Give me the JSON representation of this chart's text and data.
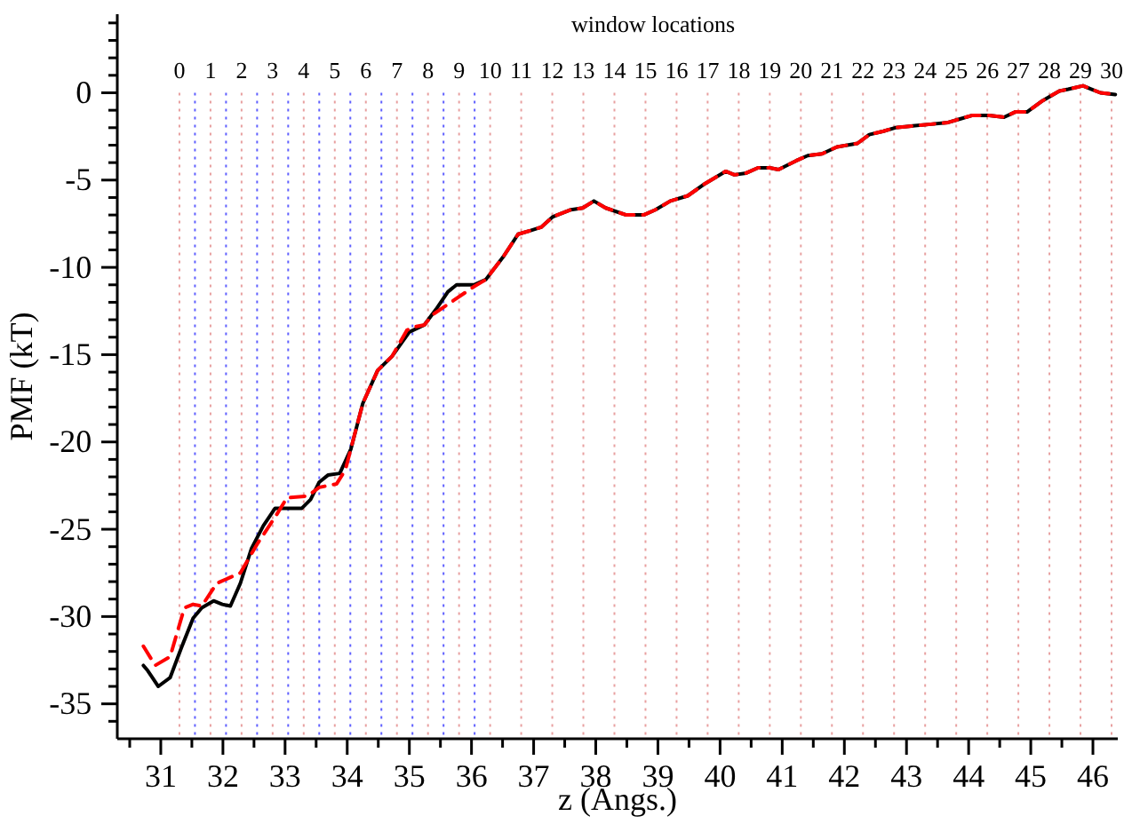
{
  "chart_data": {
    "type": "line",
    "xlabel": "z (Angs.)",
    "ylabel": "PMF (kT)",
    "x2label": "window locations",
    "x2lim": [
      -2,
      30.2
    ],
    "x2ticks": [
      0,
      1,
      2,
      3,
      4,
      5,
      6,
      7,
      8,
      9,
      10,
      11,
      12,
      13,
      14,
      15,
      16,
      17,
      18,
      19,
      20,
      21,
      22,
      23,
      24,
      25,
      26,
      27,
      28,
      29,
      30
    ],
    "xlim": [
      30.3,
      46.4
    ],
    "ylim": [
      -37,
      4.5
    ],
    "xticks": [
      {
        "value": 30.5,
        "label": null
      },
      31,
      {
        "value": 31.5,
        "label": null
      },
      32,
      {
        "value": 32.5,
        "label": null
      },
      33,
      {
        "value": 33.5,
        "label": null
      },
      34,
      {
        "value": 34.5,
        "label": null
      },
      35,
      {
        "value": 35.5,
        "label": null
      },
      36,
      {
        "value": 36.5,
        "label": null
      },
      37,
      {
        "value": 37.5,
        "label": null
      },
      38,
      {
        "value": 38.5,
        "label": null
      },
      39,
      {
        "value": 39.5,
        "label": null
      },
      40,
      {
        "value": 40.5,
        "label": null
      },
      41,
      {
        "value": 41.5,
        "label": null
      },
      42,
      {
        "value": 42.5,
        "label": null
      },
      43,
      {
        "value": 43.5,
        "label": null
      },
      44,
      {
        "value": 44.5,
        "label": null
      },
      45,
      {
        "value": 45.5,
        "label": null
      },
      46
    ],
    "yticks": [
      {
        "value": -36,
        "label": null
      },
      -35,
      {
        "value": -34,
        "label": null
      },
      {
        "value": -33,
        "label": null
      },
      {
        "value": -32,
        "label": null
      },
      {
        "value": -31,
        "label": null
      },
      -30,
      {
        "value": -29,
        "label": null
      },
      {
        "value": -28,
        "label": null
      },
      {
        "value": -27,
        "label": null
      },
      {
        "value": -26,
        "label": null
      },
      -25,
      {
        "value": -24,
        "label": null
      },
      {
        "value": -23,
        "label": null
      },
      {
        "value": -22,
        "label": null
      },
      {
        "value": -21,
        "label": null
      },
      -20,
      {
        "value": -19,
        "label": null
      },
      {
        "value": -18,
        "label": null
      },
      {
        "value": -17,
        "label": null
      },
      {
        "value": -16,
        "label": null
      },
      -15,
      {
        "value": -14,
        "label": null
      },
      {
        "value": -13,
        "label": null
      },
      {
        "value": -12,
        "label": null
      },
      {
        "value": -11,
        "label": null
      },
      -10,
      {
        "value": -9,
        "label": null
      },
      {
        "value": -8,
        "label": null
      },
      {
        "value": -7,
        "label": null
      },
      {
        "value": -6,
        "label": null
      },
      -5,
      {
        "value": -4,
        "label": null
      },
      {
        "value": -3,
        "label": null
      },
      {
        "value": -2,
        "label": null
      },
      {
        "value": -1,
        "label": null
      },
      0,
      {
        "value": 1,
        "label": null
      },
      {
        "value": 2,
        "label": null
      },
      {
        "value": 3,
        "label": null
      },
      {
        "value": 4,
        "label": null
      }
    ],
    "series": [
      {
        "color": "#000000",
        "line_style": "solid",
        "x": [
          30.72,
          30.79,
          30.96,
          31.15,
          31.33,
          31.52,
          31.66,
          31.85,
          31.99,
          32.12,
          32.28,
          32.46,
          32.65,
          32.84,
          33.03,
          33.27,
          33.41,
          33.55,
          33.69,
          33.88,
          34.06,
          34.25,
          34.49,
          34.72,
          35.0,
          35.24,
          35.43,
          35.62,
          35.76,
          36.04,
          36.23,
          36.51,
          36.75,
          36.94,
          37.12,
          37.31,
          37.6,
          37.79,
          37.97,
          38.16,
          38.49,
          38.77,
          38.96,
          39.2,
          39.48,
          39.76,
          40.09,
          40.23,
          40.42,
          40.61,
          40.8,
          40.94,
          41.22,
          41.41,
          41.64,
          41.88,
          42.21,
          42.4,
          42.63,
          42.82,
          43.1,
          43.39,
          43.67,
          43.86,
          44.05,
          44.33,
          44.57,
          44.75,
          44.94,
          45.17,
          45.46,
          45.6,
          45.84,
          45.98,
          46.12,
          46.36
        ],
        "values": [
          -32.8,
          -33.1,
          -34.0,
          -33.5,
          -31.8,
          -30.1,
          -29.5,
          -29.1,
          -29.3,
          -29.4,
          -28.1,
          -26.1,
          -24.8,
          -23.8,
          -23.8,
          -23.8,
          -23.3,
          -22.3,
          -21.9,
          -21.8,
          -20.4,
          -17.8,
          -15.9,
          -15.1,
          -13.7,
          -13.3,
          -12.4,
          -11.4,
          -11.0,
          -11.0,
          -10.7,
          -9.4,
          -8.1,
          -7.9,
          -7.7,
          -7.1,
          -6.7,
          -6.6,
          -6.2,
          -6.6,
          -7.0,
          -7.0,
          -6.7,
          -6.2,
          -5.9,
          -5.2,
          -4.5,
          -4.7,
          -4.6,
          -4.3,
          -4.3,
          -4.4,
          -3.9,
          -3.6,
          -3.5,
          -3.1,
          -2.9,
          -2.4,
          -2.2,
          -2.0,
          -1.9,
          -1.8,
          -1.7,
          -1.5,
          -1.3,
          -1.3,
          -1.4,
          -1.1,
          -1.1,
          -0.5,
          0.1,
          0.2,
          0.4,
          0.2,
          0.0,
          -0.1
        ]
      },
      {
        "color": "#ff0000",
        "line_style": "dashed",
        "x": [
          30.72,
          30.91,
          31.15,
          31.38,
          31.52,
          31.66,
          31.9,
          32.09,
          32.28,
          32.56,
          32.84,
          33.03,
          33.36,
          33.55,
          33.83,
          33.97,
          34.25,
          34.49,
          34.72,
          34.96,
          35.1,
          35.24,
          35.38,
          35.71,
          36.04,
          36.23,
          36.51,
          36.75,
          36.94,
          37.12,
          37.31,
          37.6,
          37.79,
          37.97,
          38.16,
          38.49,
          38.77,
          38.96,
          39.2,
          39.48,
          39.76,
          40.09,
          40.23,
          40.42,
          40.61,
          40.8,
          40.94,
          41.22,
          41.41,
          41.64,
          41.88,
          42.21,
          42.4,
          42.63,
          42.82,
          43.1,
          43.39,
          43.67,
          43.86,
          44.05,
          44.33,
          44.57,
          44.75,
          44.94,
          45.17,
          45.46,
          45.6,
          45.84,
          45.98,
          46.12,
          46.36
        ],
        "values": [
          -31.7,
          -32.8,
          -32.3,
          -29.5,
          -29.3,
          -29.4,
          -28.1,
          -27.8,
          -27.5,
          -25.8,
          -24.3,
          -23.2,
          -23.1,
          -22.6,
          -22.4,
          -21.6,
          -17.8,
          -15.9,
          -15.1,
          -13.6,
          -13.4,
          -13.3,
          -12.7,
          -11.9,
          -11.1,
          -10.7,
          -9.4,
          -8.1,
          -7.9,
          -7.7,
          -7.1,
          -6.7,
          -6.6,
          -6.2,
          -6.6,
          -7.0,
          -7.0,
          -6.7,
          -6.2,
          -5.9,
          -5.2,
          -4.5,
          -4.7,
          -4.6,
          -4.3,
          -4.3,
          -4.4,
          -3.9,
          -3.6,
          -3.5,
          -3.1,
          -2.9,
          -2.4,
          -2.2,
          -2.0,
          -1.9,
          -1.8,
          -1.7,
          -1.5,
          -1.3,
          -1.3,
          -1.4,
          -1.1,
          -1.1,
          -0.5,
          0.1,
          0.2,
          0.4,
          0.2,
          0.0,
          -0.1
        ]
      }
    ],
    "ref_lines": [
      {
        "axis": "x",
        "value": 31.3,
        "color": "#e8a0a0",
        "line_style": "dotted"
      },
      {
        "axis": "x",
        "value": 31.8,
        "color": "#e8a0a0",
        "line_style": "dotted"
      },
      {
        "axis": "x",
        "value": 32.3,
        "color": "#e8a0a0",
        "line_style": "dotted"
      },
      {
        "axis": "x",
        "value": 32.8,
        "color": "#e8a0a0",
        "line_style": "dotted"
      },
      {
        "axis": "x",
        "value": 33.3,
        "color": "#e8a0a0",
        "line_style": "dotted"
      },
      {
        "axis": "x",
        "value": 33.8,
        "color": "#e8a0a0",
        "line_style": "dotted"
      },
      {
        "axis": "x",
        "value": 34.3,
        "color": "#e8a0a0",
        "line_style": "dotted"
      },
      {
        "axis": "x",
        "value": 34.8,
        "color": "#e8a0a0",
        "line_style": "dotted"
      },
      {
        "axis": "x",
        "value": 35.3,
        "color": "#e8a0a0",
        "line_style": "dotted"
      },
      {
        "axis": "x",
        "value": 35.8,
        "color": "#e8a0a0",
        "line_style": "dotted"
      },
      {
        "axis": "x",
        "value": 36.3,
        "color": "#e8a0a0",
        "line_style": "dotted"
      },
      {
        "axis": "x",
        "value": 36.8,
        "color": "#e8a0a0",
        "line_style": "dotted"
      },
      {
        "axis": "x",
        "value": 37.3,
        "color": "#e8a0a0",
        "line_style": "dotted"
      },
      {
        "axis": "x",
        "value": 37.8,
        "color": "#e8a0a0",
        "line_style": "dotted"
      },
      {
        "axis": "x",
        "value": 38.3,
        "color": "#e8a0a0",
        "line_style": "dotted"
      },
      {
        "axis": "x",
        "value": 38.8,
        "color": "#e8a0a0",
        "line_style": "dotted"
      },
      {
        "axis": "x",
        "value": 39.3,
        "color": "#e8a0a0",
        "line_style": "dotted"
      },
      {
        "axis": "x",
        "value": 39.8,
        "color": "#e8a0a0",
        "line_style": "dotted"
      },
      {
        "axis": "x",
        "value": 40.3,
        "color": "#e8a0a0",
        "line_style": "dotted"
      },
      {
        "axis": "x",
        "value": 40.8,
        "color": "#e8a0a0",
        "line_style": "dotted"
      },
      {
        "axis": "x",
        "value": 41.3,
        "color": "#e8a0a0",
        "line_style": "dotted"
      },
      {
        "axis": "x",
        "value": 41.8,
        "color": "#e8a0a0",
        "line_style": "dotted"
      },
      {
        "axis": "x",
        "value": 42.3,
        "color": "#e8a0a0",
        "line_style": "dotted"
      },
      {
        "axis": "x",
        "value": 42.8,
        "color": "#e8a0a0",
        "line_style": "dotted"
      },
      {
        "axis": "x",
        "value": 43.3,
        "color": "#e8a0a0",
        "line_style": "dotted"
      },
      {
        "axis": "x",
        "value": 43.8,
        "color": "#e8a0a0",
        "line_style": "dotted"
      },
      {
        "axis": "x",
        "value": 44.3,
        "color": "#e8a0a0",
        "line_style": "dotted"
      },
      {
        "axis": "x",
        "value": 44.8,
        "color": "#e8a0a0",
        "line_style": "dotted"
      },
      {
        "axis": "x",
        "value": 45.3,
        "color": "#e8a0a0",
        "line_style": "dotted"
      },
      {
        "axis": "x",
        "value": 45.8,
        "color": "#e8a0a0",
        "line_style": "dotted"
      },
      {
        "axis": "x",
        "value": 46.3,
        "color": "#e8a0a0",
        "line_style": "dotted"
      },
      {
        "axis": "x",
        "value": 31.55,
        "color": "#6060ff",
        "line_style": "dotted"
      },
      {
        "axis": "x",
        "value": 32.05,
        "color": "#6060ff",
        "line_style": "dotted"
      },
      {
        "axis": "x",
        "value": 32.55,
        "color": "#6060ff",
        "line_style": "dotted"
      },
      {
        "axis": "x",
        "value": 33.05,
        "color": "#6060ff",
        "line_style": "dotted"
      },
      {
        "axis": "x",
        "value": 33.55,
        "color": "#6060ff",
        "line_style": "dotted"
      },
      {
        "axis": "x",
        "value": 34.05,
        "color": "#6060ff",
        "line_style": "dotted"
      },
      {
        "axis": "x",
        "value": 34.55,
        "color": "#6060ff",
        "line_style": "dotted"
      },
      {
        "axis": "x",
        "value": 35.05,
        "color": "#6060ff",
        "line_style": "dotted"
      },
      {
        "axis": "x",
        "value": 35.55,
        "color": "#6060ff",
        "line_style": "dotted"
      },
      {
        "axis": "x",
        "value": 36.05,
        "color": "#6060ff",
        "line_style": "dotted"
      }
    ]
  }
}
